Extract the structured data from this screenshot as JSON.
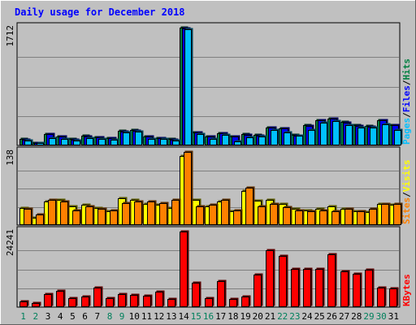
{
  "chart_data": {
    "type": "bar",
    "title": "Daily usage for December 2018",
    "categories": [
      "1",
      "2",
      "3",
      "4",
      "5",
      "6",
      "7",
      "8",
      "9",
      "10",
      "11",
      "12",
      "13",
      "14",
      "15",
      "16",
      "17",
      "18",
      "19",
      "20",
      "21",
      "22",
      "23",
      "24",
      "25",
      "26",
      "27",
      "28",
      "29",
      "30",
      "31"
    ],
    "weekend_days": [
      "1",
      "2",
      "8",
      "9",
      "15",
      "16",
      "22",
      "23",
      "29",
      "30"
    ],
    "panels": [
      {
        "name": "hits-files-pages",
        "max_label": "1712",
        "ylim": [
          0,
          1712
        ],
        "legend": [
          {
            "name": "Pages",
            "color": "#00c0ff"
          },
          {
            "name": "Files",
            "color": "#0000ff"
          },
          {
            "name": "Hits",
            "color": "#008040"
          }
        ],
        "series": [
          {
            "name": "Hits",
            "color": "#008040",
            "values": [
              90,
              40,
              170,
              130,
              90,
              140,
              120,
              110,
              210,
              220,
              130,
              110,
              90,
              1712,
              190,
              130,
              180,
              130,
              160,
              150,
              260,
              250,
              150,
              290,
              370,
              390,
              340,
              290,
              280,
              370,
              300
            ]
          },
          {
            "name": "Files",
            "color": "#0000ff",
            "values": [
              85,
              35,
              165,
              125,
              85,
              135,
              115,
              105,
              205,
              215,
              125,
              105,
              85,
              1700,
              185,
              125,
              175,
              125,
              155,
              145,
              255,
              245,
              145,
              285,
              365,
              385,
              335,
              285,
              275,
              365,
              295
            ]
          },
          {
            "name": "Pages",
            "color": "#00c0ff",
            "values": [
              70,
              30,
              110,
              100,
              70,
              110,
              95,
              85,
              190,
              200,
              100,
              90,
              70,
              1690,
              160,
              100,
              150,
              60,
              120,
              130,
              220,
              190,
              140,
              220,
              330,
              360,
              300,
              260,
              255,
              310,
              220
            ]
          }
        ]
      },
      {
        "name": "visits-sites",
        "max_label": "138",
        "ylim": [
          0,
          138
        ],
        "legend": [
          {
            "name": "Sites",
            "color": "#ff8000"
          },
          {
            "name": "Visits",
            "color": "#ffff00"
          }
        ],
        "series": [
          {
            "name": "Visits",
            "color": "#ffff00",
            "values": [
              32,
              14,
              45,
              48,
              36,
              38,
              32,
              26,
              50,
              47,
              40,
              38,
              32,
              130,
              48,
              36,
              44,
              26,
              64,
              46,
              48,
              40,
              30,
              28,
              30,
              36,
              30,
              26,
              24,
              40,
              38
            ]
          },
          {
            "name": "Sites",
            "color": "#ff8000",
            "values": [
              30,
              20,
              48,
              45,
              28,
              35,
              30,
              28,
              42,
              45,
              44,
              42,
              48,
              138,
              36,
              38,
              48,
              28,
              70,
              36,
              40,
              34,
              28,
              26,
              28,
              26,
              30,
              26,
              30,
              40,
              40
            ]
          }
        ]
      },
      {
        "name": "kbytes",
        "max_label": "24241",
        "ylim": [
          0,
          24241
        ],
        "legend": [
          {
            "name": "KBytes",
            "color": "#ff0000"
          }
        ],
        "series": [
          {
            "name": "KBytes",
            "color": "#ff0000",
            "values": [
              1900,
              1200,
              4300,
              5200,
              2800,
              3500,
              6200,
              2800,
              4100,
              4000,
              3600,
              5000,
              2600,
              24241,
              7800,
              2800,
              8300,
              2500,
              3300,
              10400,
              18200,
              16400,
              12300,
              12200,
              12200,
              17000,
              11500,
              10800,
              12000,
              6300,
              5900
            ]
          }
        ]
      }
    ],
    "colors": {
      "title": "#0000ff",
      "axis_label": "#000000",
      "weekday_label": "#000000",
      "weekend_label": "#00805c",
      "plot_bg": "#c0c0c0",
      "page_bg": "#c0c0c0"
    }
  }
}
